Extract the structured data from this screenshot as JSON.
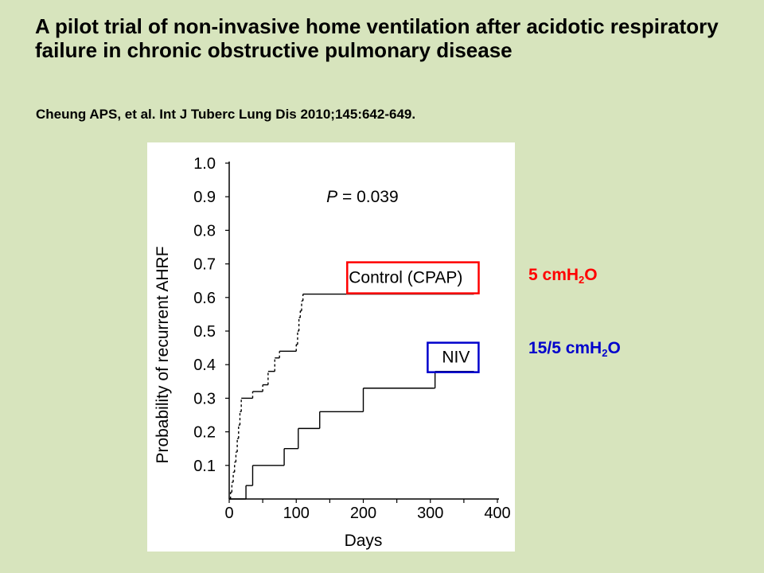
{
  "slide": {
    "title": "A pilot trial of non-invasive home ventilation after acidotic respiratory failure in chronic obstructive pulmonary disease",
    "citation": "Cheung APS, et al. Int J Tuberc Lung Dis 2010;145:642-649.",
    "annotations": {
      "control": {
        "prefix": "5 cmH",
        "sub": "2",
        "suffix": "O",
        "color": "#ff0000"
      },
      "niv": {
        "prefix": "15/5 cmH",
        "sub": "2",
        "suffix": "O",
        "color": "#0000cc"
      }
    }
  },
  "chart_data": {
    "type": "line",
    "subtype": "kaplan-meier step",
    "title": "",
    "xlabel": "Days",
    "ylabel": "Probability of recurrent AHRF",
    "xlim": [
      0,
      400
    ],
    "ylim": [
      0,
      1.0
    ],
    "x_ticks": [
      0,
      100,
      200,
      300,
      400
    ],
    "y_ticks": [
      0.1,
      0.2,
      0.3,
      0.4,
      0.5,
      0.6,
      0.7,
      0.8,
      0.9,
      1.0
    ],
    "x_tick_labels": [
      "0",
      "100",
      "200",
      "300",
      "400"
    ],
    "y_tick_labels": [
      "0.1",
      "0.2",
      "0.3",
      "0.4",
      "0.5",
      "0.6",
      "0.7",
      "0.8",
      "0.9",
      "1.0"
    ],
    "grid": false,
    "annotation": {
      "prefix": "P",
      "text": " = 0.039"
    },
    "series": [
      {
        "name": "Control (CPAP)",
        "dashed_until_x": 110,
        "steps": [
          [
            0,
            0.0
          ],
          [
            2,
            0.02
          ],
          [
            4,
            0.05
          ],
          [
            6,
            0.08
          ],
          [
            8,
            0.11
          ],
          [
            10,
            0.14
          ],
          [
            12,
            0.18
          ],
          [
            14,
            0.22
          ],
          [
            16,
            0.26
          ],
          [
            18,
            0.3
          ],
          [
            35,
            0.32
          ],
          [
            50,
            0.34
          ],
          [
            58,
            0.38
          ],
          [
            68,
            0.42
          ],
          [
            75,
            0.44
          ],
          [
            100,
            0.46
          ],
          [
            102,
            0.5
          ],
          [
            104,
            0.54
          ],
          [
            106,
            0.56
          ],
          [
            108,
            0.59
          ],
          [
            110,
            0.61
          ],
          [
            365,
            0.61
          ]
        ],
        "highlight_color": "#ff0000"
      },
      {
        "name": "NIV",
        "steps": [
          [
            0,
            0.0
          ],
          [
            23,
            0.0
          ],
          [
            25,
            0.04
          ],
          [
            35,
            0.1
          ],
          [
            82,
            0.15
          ],
          [
            103,
            0.21
          ],
          [
            135,
            0.26
          ],
          [
            200,
            0.33
          ],
          [
            305,
            0.33
          ],
          [
            307,
            0.38
          ],
          [
            365,
            0.38
          ]
        ],
        "highlight_color": "#0000cc"
      }
    ]
  }
}
